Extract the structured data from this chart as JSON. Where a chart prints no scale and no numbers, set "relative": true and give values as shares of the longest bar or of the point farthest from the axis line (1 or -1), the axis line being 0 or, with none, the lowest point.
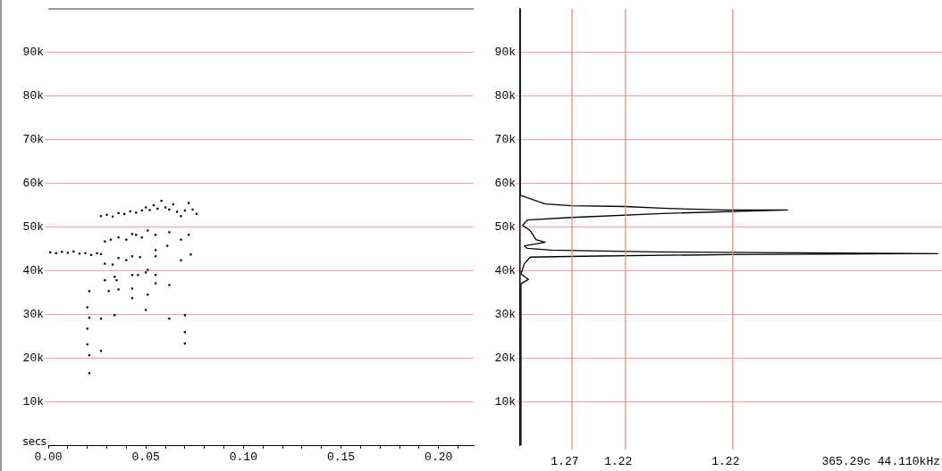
{
  "chart_data": [
    {
      "type": "scatter",
      "xlabel": "secs",
      "grid": "y",
      "xlim": [
        0,
        0.218
      ],
      "xticks": [
        {
          "value": 0,
          "label": "0.00"
        },
        {
          "value": 0.01,
          "label": null
        },
        {
          "value": 0.02,
          "label": null
        },
        {
          "value": 0.03,
          "label": null
        },
        {
          "value": 0.04,
          "label": null
        },
        {
          "value": 0.05,
          "label": "0.05"
        },
        {
          "value": 0.06,
          "label": null
        },
        {
          "value": 0.07,
          "label": null
        },
        {
          "value": 0.08,
          "label": null
        },
        {
          "value": 0.09,
          "label": null
        },
        {
          "value": 0.1,
          "label": "0.10"
        },
        {
          "value": 0.11,
          "label": null
        },
        {
          "value": 0.12,
          "label": null
        },
        {
          "value": 0.13,
          "label": null
        },
        {
          "value": 0.14,
          "label": null
        },
        {
          "value": 0.15,
          "label": "0.15"
        },
        {
          "value": 0.16,
          "label": null
        },
        {
          "value": 0.17,
          "label": null
        },
        {
          "value": 0.18,
          "label": null
        },
        {
          "value": 0.19,
          "label": null
        },
        {
          "value": 0.2,
          "label": "0.20"
        },
        {
          "value": 0.21,
          "label": null
        }
      ],
      "ylim": [
        0,
        100000
      ],
      "yticks": [
        {
          "value": 10000,
          "label": "10k"
        },
        {
          "value": 20000,
          "label": "20k"
        },
        {
          "value": 30000,
          "label": "30k"
        },
        {
          "value": 40000,
          "label": "40k"
        },
        {
          "value": 50000,
          "label": "50k"
        },
        {
          "value": 60000,
          "label": "60k"
        },
        {
          "value": 70000,
          "label": "70k"
        },
        {
          "value": 80000,
          "label": "80k"
        },
        {
          "value": 90000,
          "label": "90k"
        }
      ],
      "series": [
        {
          "color": "#000000",
          "x": [
            0.001,
            0.004,
            0.007,
            0.01,
            0.013,
            0.016,
            0.019,
            0.022,
            0.025,
            0.027,
            0.027,
            0.03,
            0.033,
            0.036,
            0.039,
            0.042,
            0.045,
            0.048,
            0.05,
            0.052,
            0.054,
            0.056,
            0.058,
            0.06,
            0.062,
            0.064,
            0.066,
            0.068,
            0.07,
            0.072,
            0.074,
            0.076,
            0.029,
            0.032,
            0.036,
            0.04,
            0.043,
            0.045,
            0.048,
            0.051,
            0.055,
            0.062,
            0.068,
            0.072,
            0.061,
            0.055,
            0.073,
            0.029,
            0.033,
            0.036,
            0.04,
            0.043,
            0.047,
            0.055,
            0.068,
            0.029,
            0.034,
            0.035,
            0.043,
            0.046,
            0.05,
            0.051,
            0.055,
            0.055,
            0.062,
            0.021,
            0.031,
            0.036,
            0.043,
            0.043,
            0.051,
            0.02,
            0.021,
            0.027,
            0.034,
            0.05,
            0.062,
            0.07,
            0.02,
            0.07,
            0.02,
            0.07,
            0.021,
            0.027,
            0.021
          ],
          "values": [
            44200,
            44000,
            44300,
            44100,
            44400,
            43900,
            44000,
            43600,
            44000,
            43800,
            52500,
            52800,
            52400,
            53200,
            53000,
            53600,
            53300,
            53800,
            54500,
            53900,
            55000,
            54200,
            56000,
            54500,
            54000,
            55200,
            53500,
            52500,
            53800,
            55500,
            54000,
            53000,
            46700,
            47100,
            47600,
            47100,
            48400,
            48200,
            47600,
            49200,
            48200,
            48800,
            47100,
            48200,
            45700,
            44700,
            43700,
            41600,
            41400,
            42900,
            42400,
            43300,
            43100,
            43300,
            42400,
            37800,
            38600,
            37800,
            39000,
            39000,
            39600,
            40200,
            39000,
            37100,
            36700,
            35300,
            35300,
            35700,
            35900,
            33700,
            34500,
            31600,
            29200,
            29000,
            29800,
            31000,
            29000,
            29800,
            26700,
            25900,
            23100,
            23300,
            20600,
            21600,
            16500
          ]
        }
      ]
    },
    {
      "type": "line",
      "orientation": "horizontal",
      "relative": true,
      "grid": "y",
      "ylim": [
        0,
        100000
      ],
      "yticks": [
        {
          "value": 10000,
          "label": "10k"
        },
        {
          "value": 20000,
          "label": "20k"
        },
        {
          "value": 30000,
          "label": "30k"
        },
        {
          "value": 40000,
          "label": "40k"
        },
        {
          "value": 50000,
          "label": "50k"
        },
        {
          "value": 60000,
          "label": "60k"
        },
        {
          "value": 70000,
          "label": "70k"
        },
        {
          "value": 80000,
          "label": "80k"
        },
        {
          "value": 90000,
          "label": "90k"
        }
      ],
      "series": [
        {
          "color": "#000000",
          "x": [
            100000,
            57300,
            55300,
            54900,
            54700,
            54300,
            53900,
            53900,
            53100,
            52200,
            51600,
            50400,
            49200,
            47100,
            46500,
            45700,
            45100,
            44700,
            44300,
            43900,
            43700,
            43300,
            43100,
            41600,
            39200,
            38000,
            37000,
            0
          ],
          "values": [
            0,
            0,
            0.06,
            0.124,
            0.25,
            0.34,
            0.49,
            0.64,
            0.34,
            0.124,
            0.017,
            0.006,
            0.024,
            0.038,
            0.06,
            0.01,
            0.017,
            0.075,
            0.32,
            1,
            0.51,
            0.15,
            0.024,
            0.01,
            0.002,
            0.02,
            0.002,
            0.002
          ]
        }
      ],
      "ref_lines": [
        {
          "axis": "x",
          "value": 0.124,
          "color": "#ff8080"
        },
        {
          "axis": "x",
          "value": 0.252,
          "color": "#ff8080"
        },
        {
          "axis": "x",
          "value": 0.509,
          "color": "#ff8080"
        }
      ],
      "annotations": [
        "1.27",
        "1.22",
        "1.22",
        "365.29c 44.110kHz"
      ]
    }
  ]
}
